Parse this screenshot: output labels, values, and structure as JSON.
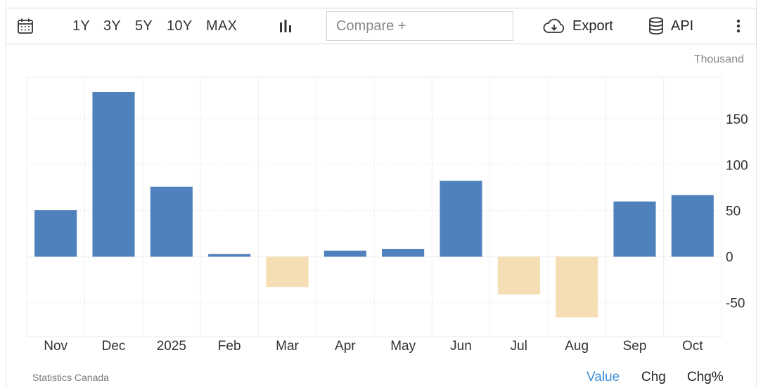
{
  "toolbar": {
    "ranges": [
      "1Y",
      "3Y",
      "5Y",
      "10Y",
      "MAX"
    ],
    "compare_placeholder": "Compare +",
    "export_label": "Export",
    "api_label": "API",
    "icons": [
      "calendar-icon",
      "bar-chart-icon",
      "cloud-download-icon",
      "database-icon",
      "more-vertical-icon"
    ]
  },
  "chart_data": {
    "type": "bar",
    "unit_label": "Thousand",
    "categories": [
      "Nov",
      "Dec",
      "2025",
      "Feb",
      "Mar",
      "Apr",
      "May",
      "Jun",
      "Jul",
      "Aug",
      "Sep",
      "Oct"
    ],
    "values": [
      50.5,
      179,
      76,
      3,
      -33,
      6.5,
      8.5,
      82.5,
      -41,
      -66,
      60,
      67
    ],
    "y_ticks": [
      150,
      100,
      50,
      0,
      -50
    ],
    "ylim": [
      -87,
      195
    ],
    "y_axis_side": "right",
    "grid": true,
    "colors": {
      "positive": "#4f81bd",
      "negative": "#f5deb3"
    }
  },
  "footer": {
    "source": "Statistics Canada",
    "modes": [
      "Value",
      "Chg",
      "Chg%"
    ],
    "active_mode": "Value",
    "active_color": "#3d8fd8"
  }
}
